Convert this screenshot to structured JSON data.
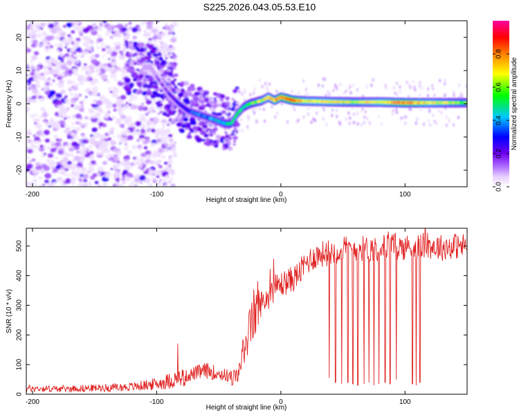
{
  "title": "S225.2026.043.05.53.E10",
  "colors": {
    "snr_line": "#e02020",
    "frame": "#000000",
    "colormap": [
      "#ffffff",
      "#e8d0ff",
      "#b070ff",
      "#7000f0",
      "#0000ff",
      "#00c8ff",
      "#00ff00",
      "#ffff00",
      "#ff8000",
      "#ff0000",
      "#ff00a0"
    ]
  },
  "chart_data": [
    {
      "type": "heatmap",
      "title": "",
      "xlabel": "Height of straight line (km)",
      "ylabel": "Frequency (Hz)",
      "xlim": [
        -205,
        150
      ],
      "ylim": [
        -25,
        25
      ],
      "xticks": [
        -200,
        -100,
        0,
        100
      ],
      "yticks": [
        -20,
        -10,
        0,
        10,
        20
      ],
      "colorbar": {
        "label": "Normalized spectral amplitude",
        "range": [
          0,
          1
        ],
        "ticks": [
          "0.0",
          "0.2",
          "0.4",
          "0.6",
          "0.8"
        ]
      },
      "ridge": {
        "x": [
          -105,
          -98,
          -90,
          -82,
          -75,
          -68,
          -60,
          -52,
          -45,
          -40,
          -35,
          -30,
          -25,
          -20,
          -15,
          -10,
          -5,
          0,
          5,
          10,
          20,
          40,
          60,
          80,
          100,
          120,
          150
        ],
        "frequency": [
          11,
          7,
          3,
          0,
          -2,
          -3,
          -4,
          -5,
          -6,
          -6,
          -3,
          -1,
          0,
          0.5,
          1,
          2,
          1,
          2,
          1.5,
          1,
          0.8,
          0.6,
          0.5,
          0.5,
          0.3,
          0.3,
          0.3
        ],
        "amplitude": [
          0.15,
          0.15,
          0.2,
          0.25,
          0.3,
          0.35,
          0.35,
          0.4,
          0.45,
          0.5,
          0.5,
          0.5,
          0.55,
          0.6,
          0.65,
          0.7,
          0.75,
          0.8,
          0.85,
          0.85,
          0.7,
          0.7,
          0.65,
          0.7,
          0.8,
          0.7,
          0.6
        ]
      }
    },
    {
      "type": "line",
      "title": "",
      "xlabel": "Height of straight line (km)",
      "ylabel": "SNR (10 * v/v)",
      "xlim": [
        -205,
        150
      ],
      "ylim": [
        0,
        560
      ],
      "xticks": [
        -200,
        -100,
        0,
        100
      ],
      "yticks": [
        0,
        100,
        200,
        300,
        400,
        500
      ],
      "series": [
        {
          "name": "SNR",
          "x": [
            -205,
            -180,
            -160,
            -140,
            -120,
            -100,
            -90,
            -80,
            -70,
            -60,
            -50,
            -40,
            -35,
            -30,
            -25,
            -20,
            -15,
            -10,
            -5,
            0,
            5,
            10,
            15,
            20,
            25,
            30,
            40,
            50,
            60,
            70,
            80,
            90,
            100,
            110,
            120,
            130,
            140,
            150
          ],
          "values": [
            20,
            18,
            20,
            22,
            25,
            35,
            45,
            55,
            70,
            80,
            70,
            60,
            55,
            150,
            220,
            290,
            310,
            330,
            360,
            370,
            380,
            390,
            410,
            440,
            460,
            470,
            480,
            490,
            495,
            490,
            495,
            500,
            495,
            500,
            500,
            495,
            500,
            500
          ]
        }
      ],
      "dropouts": [
        {
          "x": 39,
          "value": 55
        },
        {
          "x": 44,
          "value": 40
        },
        {
          "x": 49,
          "value": 35
        },
        {
          "x": 54,
          "value": 40
        },
        {
          "x": 58,
          "value": 35
        },
        {
          "x": 62,
          "value": 30
        },
        {
          "x": 67,
          "value": 35
        },
        {
          "x": 71,
          "value": 40
        },
        {
          "x": 75,
          "value": 30
        },
        {
          "x": 79,
          "value": 35
        },
        {
          "x": 84,
          "value": 40
        },
        {
          "x": 88,
          "value": 35
        },
        {
          "x": 93,
          "value": 50
        },
        {
          "x": 106,
          "value": 35
        },
        {
          "x": 109,
          "value": 30
        },
        {
          "x": 112,
          "value": 40
        }
      ]
    }
  ]
}
